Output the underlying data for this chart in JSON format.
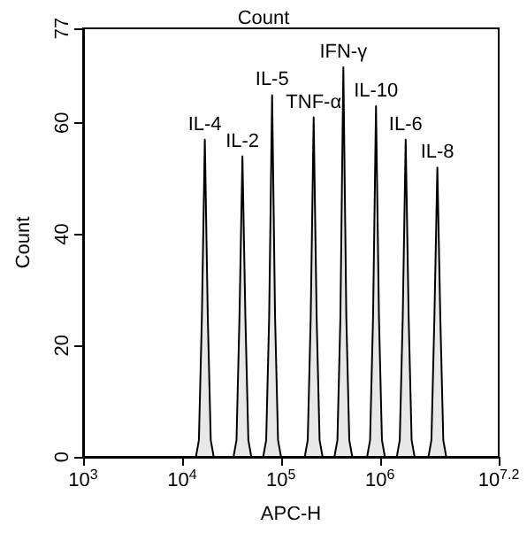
{
  "chart_data": {
    "type": "area",
    "title": "Count",
    "xlabel": "APC-H",
    "ylabel": "Count",
    "log": "x",
    "grid": false,
    "marker": "none",
    "xlim": [
      1000,
      15848932
    ],
    "xticks": [
      {
        "value": 1000,
        "label": "10$^{3}$"
      },
      {
        "value": 10000,
        "label": "10$^{4}$"
      },
      {
        "value": 100000,
        "label": "10$^{5}$"
      },
      {
        "value": 1000000,
        "label": "10$^{6}$"
      },
      {
        "value": 15848932,
        "label": "10$^{7.2}$"
      }
    ],
    "ylim": [
      0,
      77
    ],
    "yticks": [
      0,
      20,
      40,
      60,
      77
    ],
    "series": [
      {
        "color": "#000000",
        "x": [
          13804,
          14791,
          15849,
          16982,
          18197,
          19498,
          20893,
          33113,
          35481,
          38019,
          40738,
          43652,
          46774,
          50119,
          66069,
          70795,
          75858,
          81283,
          87096,
          93325,
          100000,
          173780,
          186209,
          199526,
          213796,
          229087,
          245471,
          263027,
          346737,
          371535,
          398107,
          426580,
          457088,
          489779,
          524807,
          741310,
          794328,
          851138,
          912011,
          977237,
          1047129,
          1122018,
          1479108,
          1584893,
          1698244,
          1819701,
          1949845,
          2089296,
          2238721,
          3090295,
          3311311,
          3548134,
          3801894,
          4073803,
          4365158,
          4677351
        ],
        "values": [
          0,
          3,
          25,
          57,
          25,
          3,
          0,
          0,
          3,
          25,
          54,
          25,
          3,
          0,
          0,
          3,
          25,
          65,
          25,
          3,
          0,
          0,
          3,
          25,
          61,
          25,
          3,
          0,
          0,
          3,
          25,
          70,
          25,
          3,
          0,
          0,
          3,
          25,
          63,
          25,
          3,
          0,
          0,
          3,
          25,
          57,
          25,
          3,
          0,
          0,
          3,
          25,
          52,
          25,
          3,
          0
        ]
      }
    ],
    "annotations": [
      {
        "text": "IL-4",
        "x": 16982,
        "y": 57
      },
      {
        "text": "IL-2",
        "x": 40738,
        "y": 54
      },
      {
        "text": "IL-5",
        "x": 81283,
        "y": 65
      },
      {
        "text": "TNF-α",
        "x": 213796,
        "y": 61
      },
      {
        "text": "IFN-γ",
        "x": 426580,
        "y": 70
      },
      {
        "text": "IL-10",
        "x": 912011,
        "y": 63
      },
      {
        "text": "IL-6",
        "x": 1819701,
        "y": 57
      },
      {
        "text": "IL-8",
        "x": 3801894,
        "y": 52
      }
    ]
  }
}
